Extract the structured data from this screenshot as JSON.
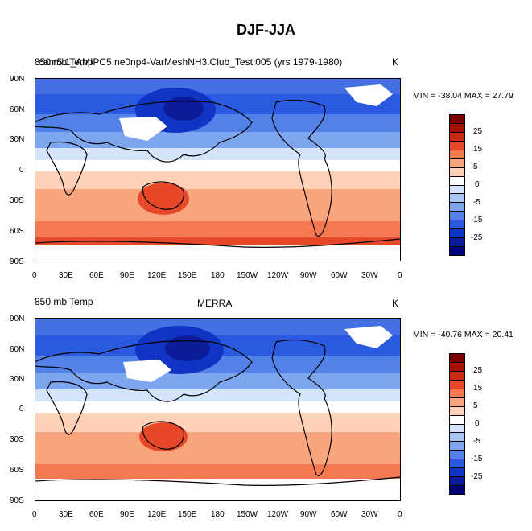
{
  "figure": {
    "title": "DJF-JJA"
  },
  "panels": [
    {
      "left_title": "850 mb Temp",
      "center_title": "cam5.1_AMIPC5.ne0np4-VarMeshNH3.Club_Test.005 (yrs 1979-1980)",
      "units": "K",
      "minmax": "MIN = -38.04 MAX =  27.79"
    },
    {
      "left_title": "850 mb Temp",
      "center_title": "MERRA",
      "units": "K",
      "minmax": "MIN = -40.76 MAX =  20.41"
    }
  ],
  "axes": {
    "lat_ticks": [
      "90N",
      "60N",
      "30N",
      "0",
      "30S",
      "60S",
      "90S"
    ],
    "lon_ticks": [
      "0",
      "30E",
      "60E",
      "90E",
      "120E",
      "150E",
      "180",
      "150W",
      "120W",
      "90W",
      "60W",
      "30W",
      "0"
    ]
  },
  "colorbar": {
    "colors": [
      "#7a0000",
      "#a81000",
      "#cc2a10",
      "#e8482a",
      "#f47850",
      "#f9a67e",
      "#fdd2b8",
      "#ffffff",
      "#d4e4fb",
      "#a8c6f4",
      "#7ea6ee",
      "#5282e8",
      "#2a5ae0",
      "#1034c4",
      "#0a1c98",
      "#00007a"
    ],
    "labels": [
      "25",
      "15",
      "5",
      "0",
      "-5",
      "-15",
      "-25"
    ]
  }
}
